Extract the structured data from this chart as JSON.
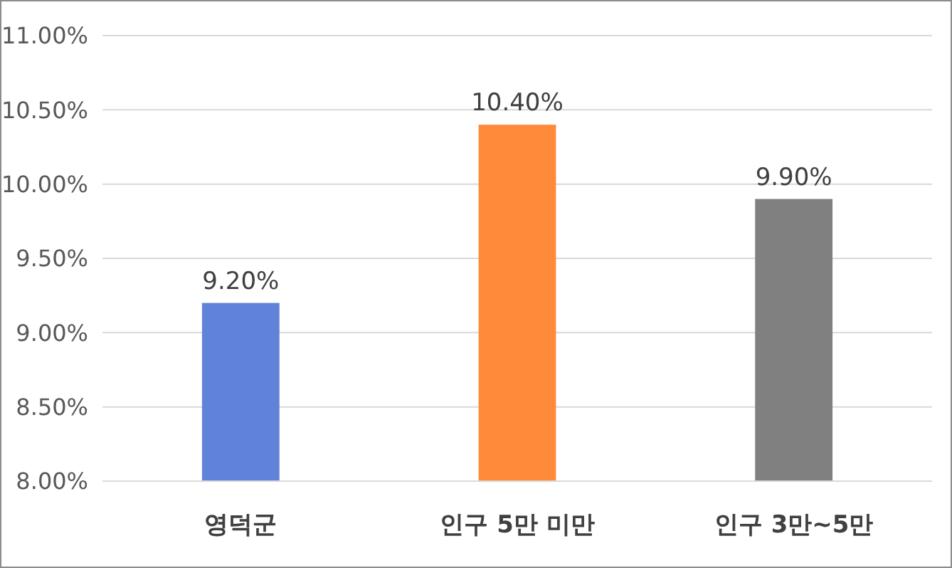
{
  "chart_data": {
    "type": "bar",
    "categories": [
      "영덕군",
      "인구 5만 미만",
      "인구 3만~5만"
    ],
    "values": [
      9.2,
      10.4,
      9.9
    ],
    "colors": [
      "#6182d9",
      "#ff8b3a",
      "#808080"
    ],
    "value_labels": [
      "9.20%",
      "10.40%",
      "9.90%"
    ],
    "ylim": [
      8,
      11
    ],
    "yticks": [
      {
        "value": 8,
        "label": "8.00%"
      },
      {
        "value": 8.5,
        "label": "8.50%"
      },
      {
        "value": 9,
        "label": "9.00%"
      },
      {
        "value": 9.5,
        "label": "9.50%"
      },
      {
        "value": 10,
        "label": "10.00%"
      },
      {
        "value": 10.5,
        "label": "10.50%"
      },
      {
        "value": 11,
        "label": "11.00%"
      }
    ],
    "grid": "y"
  }
}
